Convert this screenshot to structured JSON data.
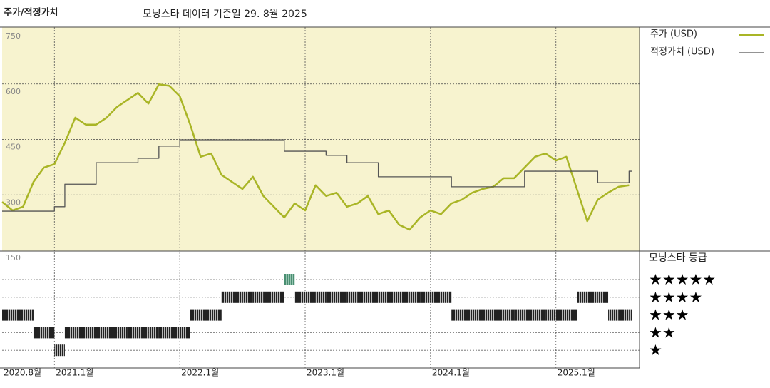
{
  "chart_data": {
    "type": "line",
    "title": "주가/적정가치",
    "subtitle": "모닝스타 데이터 기준일 29. 8월 2025",
    "x": [
      "2020-08",
      "2020-09",
      "2020-10",
      "2020-11",
      "2020-12",
      "2021-01",
      "2021-02",
      "2021-03",
      "2021-04",
      "2021-05",
      "2021-06",
      "2021-07",
      "2021-08",
      "2021-09",
      "2021-10",
      "2021-11",
      "2021-12",
      "2022-01",
      "2022-02",
      "2022-03",
      "2022-04",
      "2022-05",
      "2022-06",
      "2022-07",
      "2022-08",
      "2022-09",
      "2022-10",
      "2022-11",
      "2022-12",
      "2023-01",
      "2023-02",
      "2023-03",
      "2023-04",
      "2023-05",
      "2023-06",
      "2023-07",
      "2023-08",
      "2023-09",
      "2023-10",
      "2023-11",
      "2023-12",
      "2024-01",
      "2024-02",
      "2024-03",
      "2024-04",
      "2024-05",
      "2024-06",
      "2024-07",
      "2024-08",
      "2024-09",
      "2024-10",
      "2024-11",
      "2024-12",
      "2025-01",
      "2025-02",
      "2025-03",
      "2025-04",
      "2025-05",
      "2025-06",
      "2025-07",
      "2025-08"
    ],
    "series": [
      {
        "name": "주가 (USD)",
        "color": "#a9b526",
        "values": [
          281,
          258,
          268,
          335,
          374,
          383,
          441,
          509,
          490,
          490,
          509,
          538,
          557,
          576,
          547,
          599,
          595,
          567,
          490,
          403,
          412,
          354,
          335,
          316,
          349,
          297,
          268,
          239,
          277,
          258,
          326,
          297,
          306,
          268,
          277,
          297,
          248,
          258,
          219,
          206,
          239,
          258,
          248,
          277,
          287,
          306,
          316,
          322,
          345,
          345,
          374,
          403,
          412,
          393,
          403,
          316,
          229,
          287,
          306,
          322,
          326
        ]
      },
      {
        "name": "적정가치 (USD)",
        "color": "#555555",
        "step": true,
        "values": [
          256,
          256,
          256,
          256,
          256,
          268,
          329,
          329,
          329,
          387,
          387,
          387,
          387,
          399,
          399,
          432,
          432,
          449,
          449,
          449,
          449,
          449,
          449,
          449,
          449,
          449,
          449,
          418,
          418,
          418,
          418,
          407,
          407,
          387,
          387,
          387,
          349,
          349,
          349,
          349,
          349,
          349,
          349,
          322,
          322,
          322,
          322,
          322,
          322,
          322,
          364,
          364,
          364,
          364,
          364,
          364,
          364,
          333,
          333,
          333,
          364
        ]
      }
    ],
    "xlim": [
      "2020-08",
      "2025-09"
    ],
    "xticks": [
      {
        "value": "2020-08",
        "label": "2020.8월"
      },
      {
        "value": "2021-01",
        "label": "2021.1월"
      },
      {
        "value": "2022-01",
        "label": "2022.1월"
      },
      {
        "value": "2023-01",
        "label": "2023.1월"
      },
      {
        "value": "2024-01",
        "label": "2024.1월"
      },
      {
        "value": "2025-01",
        "label": "2025.1월"
      }
    ],
    "ylim": [
      150,
      750
    ],
    "yticks": [
      150,
      300,
      450,
      600,
      750
    ],
    "grid": true,
    "rating": {
      "title": "모닝스타 등급",
      "labels": [
        "★★★★★",
        "★★★★",
        "★★★",
        "★★",
        "★"
      ],
      "color": "#222222",
      "top_color": "#4a8f72",
      "values": [
        3,
        3,
        3,
        2,
        2,
        1,
        2,
        2,
        2,
        2,
        2,
        2,
        2,
        2,
        2,
        2,
        2,
        2,
        3,
        3,
        3,
        4,
        4,
        4,
        4,
        4,
        4,
        5,
        4,
        4,
        4,
        4,
        4,
        4,
        4,
        4,
        4,
        4,
        4,
        4,
        4,
        4,
        4,
        3,
        3,
        3,
        3,
        3,
        3,
        3,
        3,
        3,
        3,
        3,
        3,
        4,
        4,
        4,
        3,
        3,
        3
      ]
    }
  }
}
